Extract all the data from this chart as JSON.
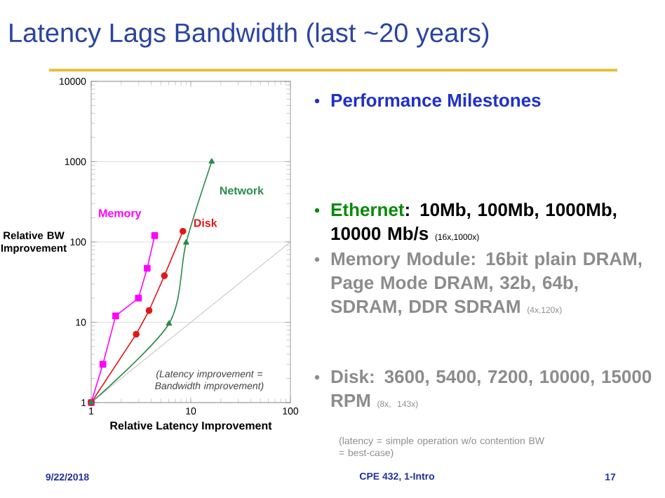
{
  "chart_data": {
    "type": "line",
    "title": "Latency Lags Bandwidth (last ~20 years)",
    "xlabel": "Relative Latency Improvement",
    "ylabel": "Relative BW Improvement",
    "log": "xy",
    "xlim": [
      1,
      100
    ],
    "xticks": [
      1,
      10,
      100
    ],
    "ylim": [
      1,
      10000
    ],
    "yticks": [
      1,
      10,
      100,
      1000,
      10000
    ],
    "grid": "y",
    "series": [
      {
        "name": "Memory",
        "color": "#ff00ff",
        "marker": "square",
        "x": [
          1,
          1.31,
          1.76,
          2.98,
          3.65,
          4.34
        ],
        "values": [
          1,
          3.0,
          12,
          20,
          47,
          120
        ]
      },
      {
        "name": "Disk",
        "color": "#e01818",
        "marker": "circle",
        "x": [
          1,
          2.83,
          3.81,
          5.43,
          8.33
        ],
        "values": [
          1,
          7.1,
          14,
          38,
          136
        ]
      },
      {
        "name": "Network",
        "color": "#2a8a4a",
        "marker": "triangle",
        "x": [
          1,
          6.04,
          8.98,
          16.2
        ],
        "values": [
          1,
          9.6,
          98,
          1000
        ]
      },
      {
        "color": "#a0a0a0",
        "marker": "none",
        "x": [
          1,
          100
        ],
        "values": [
          1,
          100
        ]
      }
    ],
    "annotations": [
      "Performance Milestones",
      "Ethernet",
      ": 10Mb, 100Mb, 1000Mb, 10000 Mb/s",
      "(16x,1000x)",
      "Memory Module: 16bit plain DRAM, Page Mode DRAM, 32b, 64b, SDRAM, DDR SDRAM",
      "(4x,120x)",
      "Disk: 3600, 5400, 7200, 10000, 15000 RPM",
      "(8x, 143x)",
      "(latency = simple operation w/o contention BW = best-case)",
      "(Latency improvement = Bandwidth improvement)",
      "9/22/2018",
      "CPE 432, 1-Intro",
      "17"
    ]
  }
}
